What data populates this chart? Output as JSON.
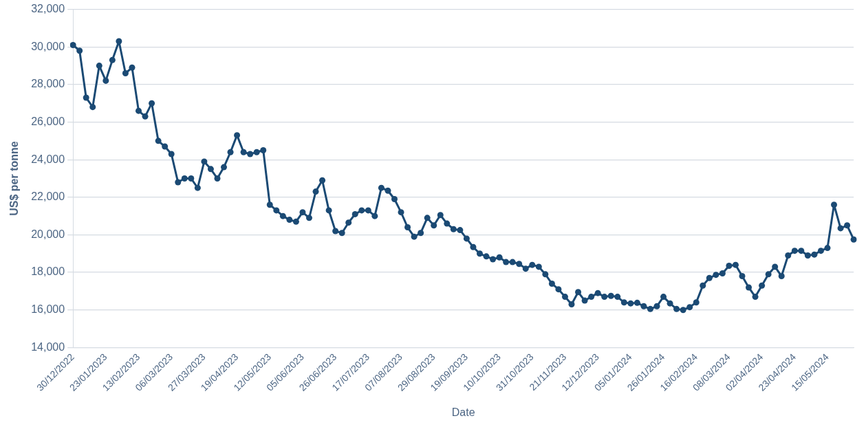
{
  "chart_data": {
    "type": "line",
    "xlabel": "Date",
    "ylabel": "US$ per tonne",
    "categories": [
      "30/12/2022",
      null,
      null,
      null,
      null,
      "23/01/2023",
      null,
      null,
      null,
      null,
      "13/02/2023",
      null,
      null,
      null,
      null,
      "06/03/2023",
      null,
      null,
      null,
      null,
      "27/03/2023",
      null,
      null,
      null,
      null,
      "19/04/2023",
      null,
      null,
      null,
      null,
      "12/05/2023",
      null,
      null,
      null,
      null,
      "05/06/2023",
      null,
      null,
      null,
      null,
      "26/06/2023",
      null,
      null,
      null,
      null,
      "17/07/2023",
      null,
      null,
      null,
      null,
      "07/08/2023",
      null,
      null,
      null,
      null,
      "29/08/2023",
      null,
      null,
      null,
      null,
      "19/09/2023",
      null,
      null,
      null,
      null,
      "10/10/2023",
      null,
      null,
      null,
      null,
      "31/10/2023",
      null,
      null,
      null,
      null,
      "21/11/2023",
      null,
      null,
      null,
      null,
      "12/12/2023",
      null,
      null,
      null,
      null,
      "05/01/2024",
      null,
      null,
      null,
      null,
      "26/01/2024",
      null,
      null,
      null,
      null,
      "16/02/2024",
      null,
      null,
      null,
      null,
      "08/03/2024",
      null,
      null,
      null,
      null,
      "02/04/2024",
      null,
      null,
      null,
      null,
      "23/04/2024",
      null,
      null,
      null,
      null,
      "15/05/2024",
      null,
      null,
      null,
      null
    ],
    "series": [
      {
        "color": "#1b4a74",
        "values": [
          30100,
          29800,
          27300,
          26800,
          29000,
          28200,
          29300,
          30300,
          28600,
          28900,
          26600,
          26300,
          27000,
          25000,
          24700,
          24300,
          22800,
          23000,
          23000,
          22500,
          23900,
          23500,
          23000,
          23600,
          24400,
          25300,
          24400,
          24300,
          24400,
          24500,
          21600,
          21300,
          21000,
          20800,
          20700,
          21200,
          20900,
          22300,
          22900,
          21300,
          20200,
          20100,
          20650,
          21100,
          21300,
          21300,
          21000,
          22500,
          22350,
          21900,
          21200,
          20400,
          19900,
          20100,
          20900,
          20500,
          21050,
          20600,
          20300,
          20250,
          19800,
          19350,
          19000,
          18850,
          18700,
          18800,
          18550,
          18550,
          18450,
          18200,
          18400,
          18300,
          17900,
          17400,
          17100,
          16700,
          16300,
          16950,
          16500,
          16700,
          16900,
          16700,
          16750,
          16700,
          16400,
          16350,
          16380,
          16200,
          16050,
          16200,
          16700,
          16350,
          16050,
          16000,
          16150,
          16400,
          17300,
          17700,
          17870,
          17950,
          18350,
          18400,
          17800,
          17200,
          16700,
          17300,
          17900,
          18300,
          17800,
          18900,
          19150,
          19150,
          18900,
          18950,
          19150,
          19300,
          21600,
          20350,
          20500,
          19750
        ]
      }
    ],
    "ylim": [
      14000,
      32000
    ],
    "yticks": [
      {
        "value": 14000,
        "label": "14,000"
      },
      {
        "value": 16000,
        "label": "16,000"
      },
      {
        "value": 18000,
        "label": "18,000"
      },
      {
        "value": 20000,
        "label": "20,000"
      },
      {
        "value": 22000,
        "label": "22,000"
      },
      {
        "value": 24000,
        "label": "24,000"
      },
      {
        "value": 26000,
        "label": "26,000"
      },
      {
        "value": 28000,
        "label": "28,000"
      },
      {
        "value": 30000,
        "label": "30,000"
      },
      {
        "value": 32000,
        "label": "32,000"
      }
    ],
    "grid": "y",
    "marker": "circle",
    "line_style": "solid",
    "legend": false
  }
}
